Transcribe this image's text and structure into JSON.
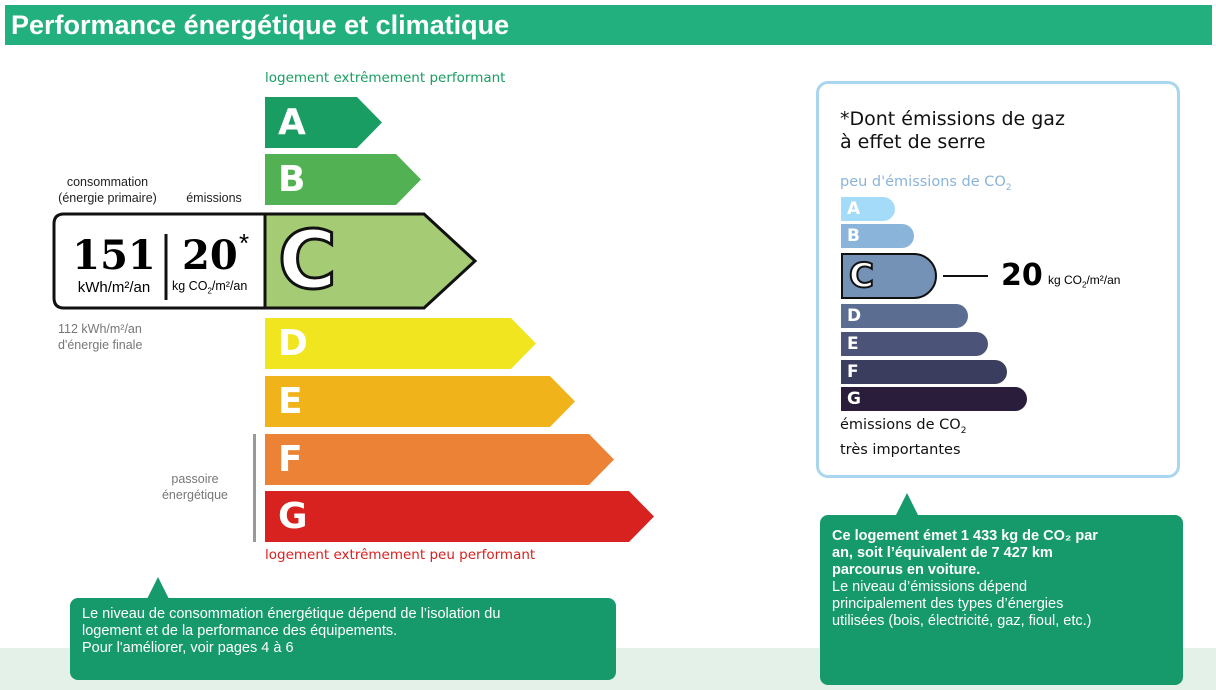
{
  "header": {
    "title": "Performance énergétique et climatique"
  },
  "energy": {
    "top_label": "logement extrêmement performant",
    "bottom_label": "logement extrêmement peu performant",
    "classes": [
      {
        "letter": "A",
        "color": "#1a9d63"
      },
      {
        "letter": "B",
        "color": "#52b153"
      },
      {
        "letter": "C",
        "color": "#a5cc74"
      },
      {
        "letter": "D",
        "color": "#f0e51e"
      },
      {
        "letter": "E",
        "color": "#f0b41a"
      },
      {
        "letter": "F",
        "color": "#eb8235"
      },
      {
        "letter": "G",
        "color": "#d7221f"
      }
    ],
    "current_class": "C",
    "consumption_label": "consommation",
    "consumption_sublabel": "(énergie primaire)",
    "emissions_label": "émissions",
    "consumption_value": "151",
    "consumption_unit": "kWh/m²/an",
    "emissions_value": "20",
    "emissions_asterisk": "*",
    "emissions_unit_pre": "kg CO",
    "emissions_unit_sub": "2",
    "emissions_unit_post": "/m²/an",
    "final_energy_line1": "112 kWh/m²/an",
    "final_energy_line2": "d'énergie finale",
    "passoire_line1": "passoire",
    "passoire_line2": "énergétique"
  },
  "ges": {
    "title_line1": "*Dont émissions de gaz",
    "title_line2": "à effet de serre",
    "top_label": "peu d'émissions de CO",
    "top_label_sub": "2",
    "bottom_label_line1": "émissions de CO",
    "bottom_label_sub": "2",
    "bottom_label_line2": "très importantes",
    "classes": [
      {
        "letter": "A",
        "color": "#a4dbf8"
      },
      {
        "letter": "B",
        "color": "#8ab4d9"
      },
      {
        "letter": "C",
        "color": "#7492b6"
      },
      {
        "letter": "D",
        "color": "#5b6d90"
      },
      {
        "letter": "E",
        "color": "#4b5478"
      },
      {
        "letter": "F",
        "color": "#3b3d5e"
      },
      {
        "letter": "G",
        "color": "#2a1d3c"
      }
    ],
    "current_class": "C",
    "value": "20",
    "unit_pre": "kg CO",
    "unit_sub": "2",
    "unit_post": "/m²/an"
  },
  "callout_left": {
    "line1": "Le niveau de consommation énergétique dépend de l’isolation du",
    "line2": "logement et de la performance des équipements.",
    "line3": "Pour l'améliorer, voir pages 4 à 6"
  },
  "callout_right": {
    "bold1": "Ce logement émet 1 433 kg de CO₂ par",
    "bold2": "an, soit l’équivalent de 7 427 km",
    "bold3": "parcourus en voiture.",
    "line1": "Le niveau d’émissions dépend",
    "line2": "principalement des types d’énergies",
    "line3": "utilisées (bois, électricité, gaz, fioul, etc.)"
  }
}
